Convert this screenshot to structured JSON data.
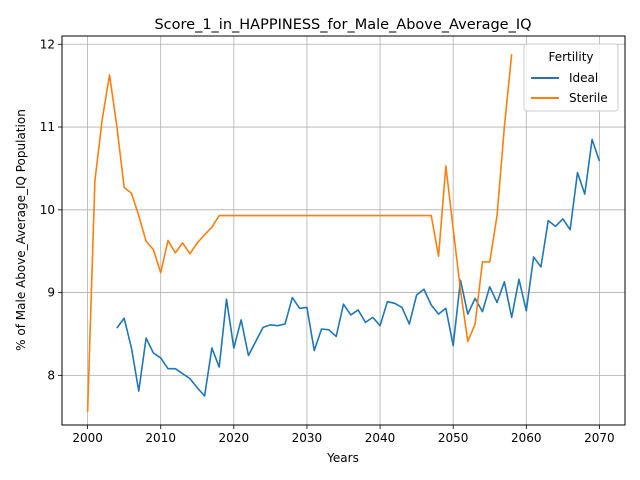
{
  "chart_data": {
    "type": "line",
    "title": "Score_1_in_HAPPINESS_for_Male_Above_Average_IQ",
    "xlabel": "Years",
    "ylabel": "% of Male Above_Average_IQ Population",
    "xlim": [
      1996.5,
      2073.5
    ],
    "ylim": [
      7.4,
      12.1
    ],
    "xticks": [
      2000,
      2010,
      2020,
      2030,
      2040,
      2050,
      2060,
      2070
    ],
    "yticks": [
      8,
      9,
      10,
      11,
      12
    ],
    "grid": true,
    "legend": {
      "title": "Fertility",
      "position": "top-right"
    },
    "colors": {
      "Ideal": "#1f77b4",
      "Sterile": "#ff7f0e"
    },
    "series": [
      {
        "name": "Ideal",
        "x": [
          2004,
          2005,
          2006,
          2007,
          2008,
          2009,
          2010,
          2011,
          2012,
          2013,
          2014,
          2015,
          2016,
          2017,
          2018,
          2019,
          2020,
          2021,
          2022,
          2023,
          2024,
          2025,
          2026,
          2027,
          2028,
          2029,
          2030,
          2031,
          2032,
          2033,
          2034,
          2035,
          2036,
          2037,
          2038,
          2039,
          2040,
          2041,
          2042,
          2043,
          2044,
          2045,
          2046,
          2047,
          2048,
          2049,
          2050,
          2051,
          2052,
          2053,
          2054,
          2055,
          2056,
          2057,
          2058,
          2059,
          2060,
          2061,
          2062,
          2063,
          2064,
          2065,
          2066,
          2067,
          2068,
          2069,
          2070
        ],
        "values": [
          8.57,
          8.69,
          8.33,
          7.81,
          8.45,
          8.27,
          8.21,
          8.08,
          8.08,
          8.02,
          7.96,
          7.85,
          7.75,
          8.33,
          8.1,
          8.92,
          8.33,
          8.67,
          8.24,
          8.41,
          8.58,
          8.61,
          8.6,
          8.62,
          8.94,
          8.81,
          8.82,
          8.3,
          8.56,
          8.55,
          8.47,
          8.86,
          8.73,
          8.79,
          8.64,
          8.7,
          8.6,
          8.89,
          8.87,
          8.82,
          8.62,
          8.97,
          9.04,
          8.85,
          8.74,
          8.81,
          8.36,
          9.15,
          8.74,
          8.93,
          8.77,
          9.07,
          8.88,
          9.13,
          8.7,
          9.16,
          8.78,
          9.43,
          9.31,
          9.87,
          9.8,
          9.89,
          9.76,
          10.45,
          10.19,
          10.85,
          10.59
        ]
      },
      {
        "name": "Sterile",
        "x": [
          2000,
          2001,
          2002,
          2003,
          2004,
          2005,
          2006,
          2007,
          2008,
          2009,
          2010,
          2011,
          2012,
          2013,
          2014,
          2015,
          2016,
          2017,
          2018,
          2019,
          2020,
          2021,
          2022,
          2023,
          2024,
          2025,
          2026,
          2027,
          2028,
          2029,
          2030,
          2031,
          2032,
          2033,
          2034,
          2035,
          2036,
          2037,
          2038,
          2039,
          2040,
          2041,
          2042,
          2043,
          2044,
          2045,
          2046,
          2047,
          2048,
          2049,
          2050,
          2051,
          2052,
          2053,
          2054,
          2055,
          2056,
          2057,
          2058
        ],
        "values": [
          7.56,
          10.35,
          11.09,
          11.63,
          11.01,
          10.27,
          10.2,
          9.93,
          9.62,
          9.52,
          9.24,
          9.63,
          9.48,
          9.6,
          9.47,
          9.6,
          9.7,
          9.79,
          9.93,
          9.93,
          9.93,
          9.93,
          9.93,
          9.93,
          9.93,
          9.93,
          9.93,
          9.93,
          9.93,
          9.93,
          9.93,
          9.93,
          9.93,
          9.93,
          9.93,
          9.93,
          9.93,
          9.93,
          9.93,
          9.93,
          9.93,
          9.93,
          9.93,
          9.93,
          9.93,
          9.93,
          9.93,
          9.93,
          9.44,
          10.53,
          9.77,
          9.03,
          8.41,
          8.62,
          9.37,
          9.37,
          9.93,
          11.0,
          11.88
        ]
      }
    ]
  }
}
